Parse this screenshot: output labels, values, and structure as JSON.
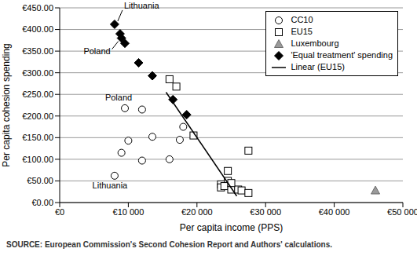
{
  "chart_data": {
    "type": "scatter",
    "x_label": "Per capita income (PPS)",
    "y_label": "Per capita cohesion spending",
    "source": "SOURCE: European Commission's Second Cohesion Report and Authors' calculations.",
    "xlim": [
      0,
      50000
    ],
    "xticks": [
      {
        "value": 0,
        "label": "€0"
      },
      {
        "value": 10000,
        "label": "€10 000"
      },
      {
        "value": 20000,
        "label": "€20 000"
      },
      {
        "value": 30000,
        "label": "€30 000"
      },
      {
        "value": 40000,
        "label": "€40 000"
      },
      {
        "value": 50000,
        "label": "€50 000"
      }
    ],
    "ylim": [
      0,
      450
    ],
    "yticks": [
      {
        "value": 0,
        "label": "€0.00"
      },
      {
        "value": 50,
        "label": "€50.00"
      },
      {
        "value": 100,
        "label": "€100.00"
      },
      {
        "value": 150,
        "label": "€150.00"
      },
      {
        "value": 200,
        "label": "€200.00"
      },
      {
        "value": 250,
        "label": "€250.00"
      },
      {
        "value": 300,
        "label": "€300.00"
      },
      {
        "value": 350,
        "label": "€350.00"
      },
      {
        "value": 400,
        "label": "€400.00"
      },
      {
        "value": 450,
        "label": "€450.00"
      }
    ],
    "grid": true,
    "legend": "upper right",
    "series": [
      {
        "name": "CC10",
        "type": "scatter",
        "marker": "circle",
        "color": "#000000",
        "x": [
          9500,
          8000,
          9000,
          10000,
          12000,
          12000,
          13500,
          16000,
          17500,
          18000
        ],
        "values": [
          218,
          62,
          115,
          143,
          215,
          97,
          152,
          100,
          145,
          175
        ]
      },
      {
        "name": "EU15",
        "type": "scatter",
        "marker": "square",
        "color": "#000000",
        "x": [
          16000,
          17000,
          19500,
          24500,
          24500,
          23500,
          23500,
          24000,
          25000,
          26000,
          26500,
          27500,
          27500,
          25000
        ],
        "values": [
          285,
          268,
          155,
          73,
          50,
          42,
          35,
          38,
          30,
          30,
          28,
          120,
          22,
          45
        ]
      },
      {
        "name": "Luxembourg",
        "type": "scatter",
        "marker": "triangle",
        "color": "#9a9a9a",
        "x": [
          46000
        ],
        "values": [
          28
        ]
      },
      {
        "name": "'Equal treatment' spending",
        "type": "scatter",
        "marker": "diamond",
        "color": "#000000",
        "x": [
          8000,
          8800,
          9000,
          9500,
          11500,
          13500,
          16500,
          18500
        ],
        "values": [
          412,
          390,
          380,
          368,
          323,
          293,
          238,
          203
        ]
      },
      {
        "name": "Linear (EU15)",
        "type": "line",
        "marker": "none",
        "color": "#000000",
        "x": [
          15500,
          25800
        ],
        "values": [
          255,
          15
        ]
      }
    ],
    "annotations": [
      {
        "text": "Lithuania",
        "x": 8000,
        "y": 412
      },
      {
        "text": "Poland",
        "x": 9000,
        "y": 380
      },
      {
        "text": "Poland",
        "x": 9500,
        "y": 218
      },
      {
        "text": "Lithuania",
        "x": 8000,
        "y": 62
      }
    ]
  }
}
